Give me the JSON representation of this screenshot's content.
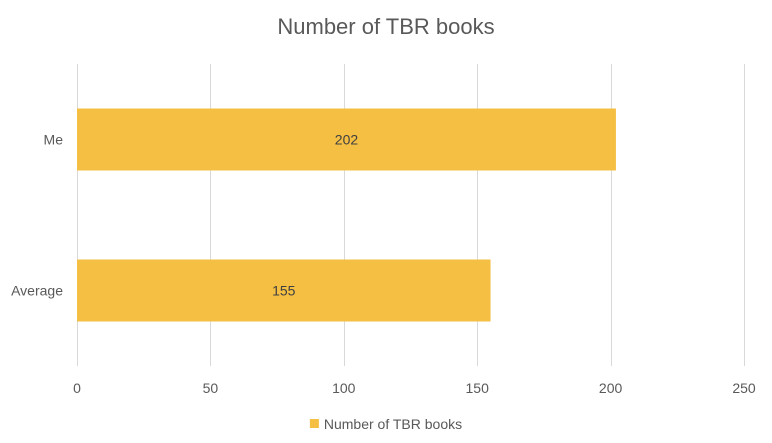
{
  "chart_data": {
    "type": "bar",
    "orientation": "horizontal",
    "title": "Number of TBR books",
    "categories": [
      "Me",
      "Average"
    ],
    "series": [
      {
        "name": "Number of TBR books",
        "values": [
          202,
          155
        ],
        "color": "#F5BF44"
      }
    ],
    "data_labels": [
      "202",
      "155"
    ],
    "xlim": [
      0,
      250
    ],
    "x_ticks": [
      0,
      50,
      100,
      150,
      200,
      250
    ],
    "x_tick_labels": [
      "0",
      "50",
      "100",
      "150",
      "200",
      "250"
    ],
    "grid": true,
    "legend": "bottom",
    "legend_entries": [
      "Number of TBR books"
    ]
  }
}
